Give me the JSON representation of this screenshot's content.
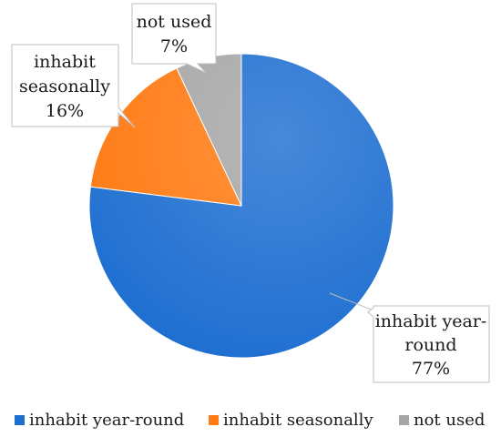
{
  "chart_data": {
    "type": "pie",
    "title": "",
    "start_angle_deg": 0,
    "direction": "clockwise",
    "legend_position": "bottom",
    "slices": [
      {
        "label": "inhabit year-round",
        "value": 77,
        "color": "#1f6fd1",
        "data_label": [
          "inhabit year-",
          "round",
          "77%"
        ]
      },
      {
        "label": "inhabit seasonally",
        "value": 16,
        "color": "#ff7a12",
        "data_label": [
          "inhabit",
          "seasonally",
          "16%"
        ]
      },
      {
        "label": "not used",
        "value": 7,
        "color": "#a6a6a6",
        "data_label": [
          "not used",
          "7%"
        ]
      }
    ]
  }
}
